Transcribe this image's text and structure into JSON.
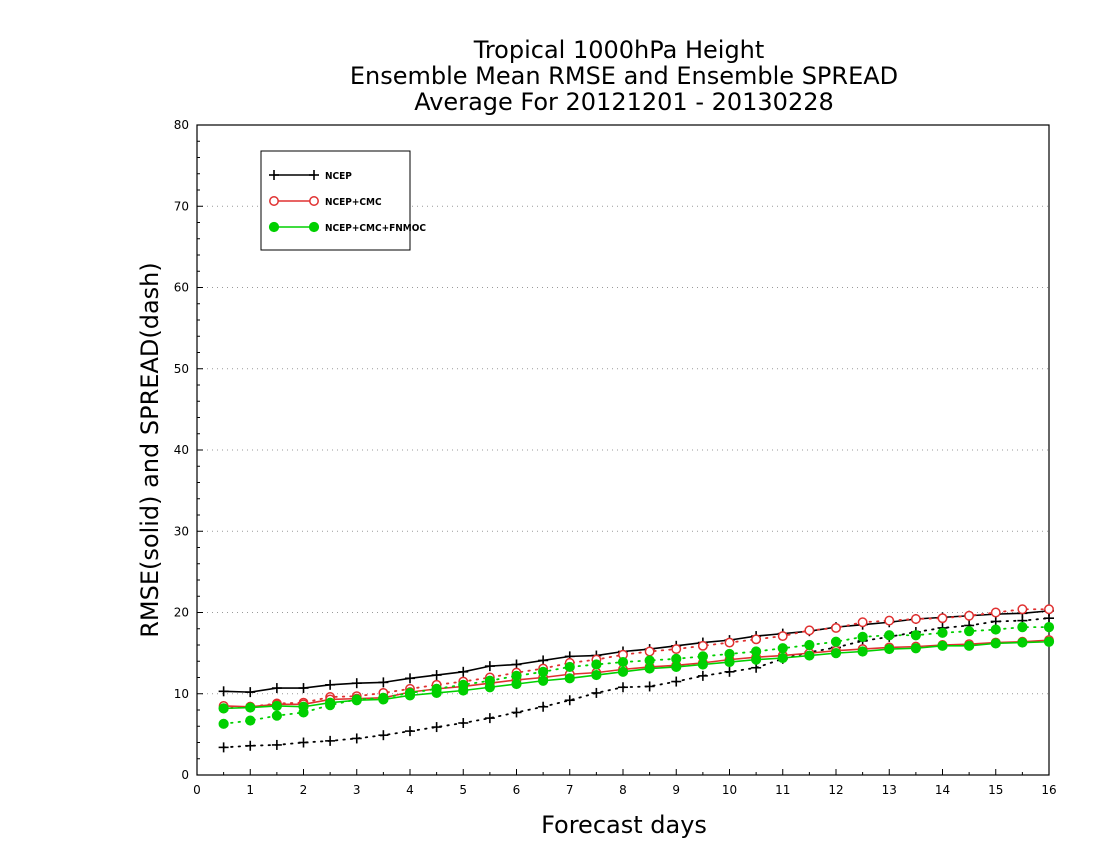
{
  "chart_data": {
    "type": "line",
    "title": [
      "Tropical 1000hPa Height",
      "Ensemble Mean RMSE and Ensemble SPREAD",
      "Average For 20121201 - 20130228"
    ],
    "xlabel": "Forecast days",
    "ylabel": "RMSE(solid) and SPREAD(dash)",
    "xlim": [
      0,
      16
    ],
    "ylim": [
      0,
      80
    ],
    "xticks": [
      "0",
      "1",
      "2",
      "3",
      "4",
      "5",
      "6",
      "7",
      "8",
      "9",
      "10",
      "11",
      "12",
      "13",
      "14",
      "15",
      "16"
    ],
    "yticks": [
      "0",
      "10",
      "20",
      "30",
      "40",
      "50",
      "60",
      "70",
      "80"
    ],
    "grid": "horizontal dotted",
    "legend_position": "top-left",
    "x": [
      0.5,
      1,
      1.5,
      2,
      2.5,
      3,
      3.5,
      4,
      4.5,
      5,
      5.5,
      6,
      6.5,
      7,
      7.5,
      8,
      8.5,
      9,
      9.5,
      10,
      10.5,
      11,
      11.5,
      12,
      12.5,
      13,
      13.5,
      14,
      14.5,
      15,
      15.5,
      16
    ],
    "series": [
      {
        "name": "NCEP",
        "color": "#000000",
        "marker": "plus",
        "rmse": [
          10.3,
          10.2,
          10.7,
          10.7,
          11.1,
          11.3,
          11.4,
          11.9,
          12.3,
          12.7,
          13.4,
          13.6,
          14.1,
          14.6,
          14.7,
          15.2,
          15.5,
          15.9,
          16.3,
          16.6,
          17.1,
          17.4,
          17.7,
          18.2,
          18.5,
          18.8,
          19.2,
          19.4,
          19.6,
          19.8,
          19.9,
          20.2
        ],
        "spread": [
          3.4,
          3.6,
          3.7,
          4.0,
          4.2,
          4.5,
          4.9,
          5.4,
          5.9,
          6.4,
          7.0,
          7.7,
          8.4,
          9.2,
          10.1,
          10.8,
          10.9,
          11.5,
          12.2,
          12.7,
          13.2,
          14.3,
          15.1,
          15.7,
          16.5,
          17.0,
          17.6,
          18.1,
          18.4,
          18.9,
          19.0,
          19.3
        ]
      },
      {
        "name": "NCEP+CMC",
        "color": "#e03030",
        "marker": "open-circle",
        "rmse": [
          8.5,
          8.4,
          8.7,
          8.7,
          9.3,
          9.4,
          9.5,
          10.2,
          10.6,
          10.9,
          11.3,
          11.7,
          12.0,
          12.4,
          12.6,
          13.0,
          13.3,
          13.5,
          13.8,
          14.2,
          14.5,
          14.7,
          15.0,
          15.3,
          15.5,
          15.7,
          15.8,
          16.0,
          16.1,
          16.3,
          16.4,
          16.6
        ],
        "spread": [
          8.2,
          8.4,
          8.8,
          8.9,
          9.6,
          9.7,
          10.1,
          10.6,
          11.1,
          11.5,
          12.0,
          12.6,
          13.1,
          13.8,
          14.2,
          14.8,
          15.2,
          15.5,
          15.9,
          16.3,
          16.7,
          17.1,
          17.8,
          18.1,
          18.8,
          19.0,
          19.2,
          19.3,
          19.6,
          20.0,
          20.4,
          20.4
        ]
      },
      {
        "name": "NCEP+CMC+FNMOC",
        "color": "#00d000",
        "marker": "filled-circle",
        "rmse": [
          8.2,
          8.3,
          8.5,
          8.4,
          8.9,
          9.2,
          9.3,
          9.8,
          10.1,
          10.4,
          10.8,
          11.2,
          11.6,
          11.9,
          12.3,
          12.7,
          13.1,
          13.3,
          13.6,
          13.9,
          14.2,
          14.4,
          14.7,
          15.0,
          15.2,
          15.5,
          15.6,
          15.9,
          15.9,
          16.2,
          16.3,
          16.4
        ],
        "spread": [
          6.3,
          6.7,
          7.3,
          7.7,
          8.6,
          9.3,
          9.5,
          10.1,
          10.6,
          11.1,
          11.6,
          12.2,
          12.7,
          13.3,
          13.6,
          13.9,
          14.1,
          14.3,
          14.6,
          14.9,
          15.2,
          15.6,
          16.0,
          16.4,
          17.0,
          17.2,
          17.2,
          17.5,
          17.7,
          17.9,
          18.2,
          18.2
        ]
      }
    ]
  }
}
